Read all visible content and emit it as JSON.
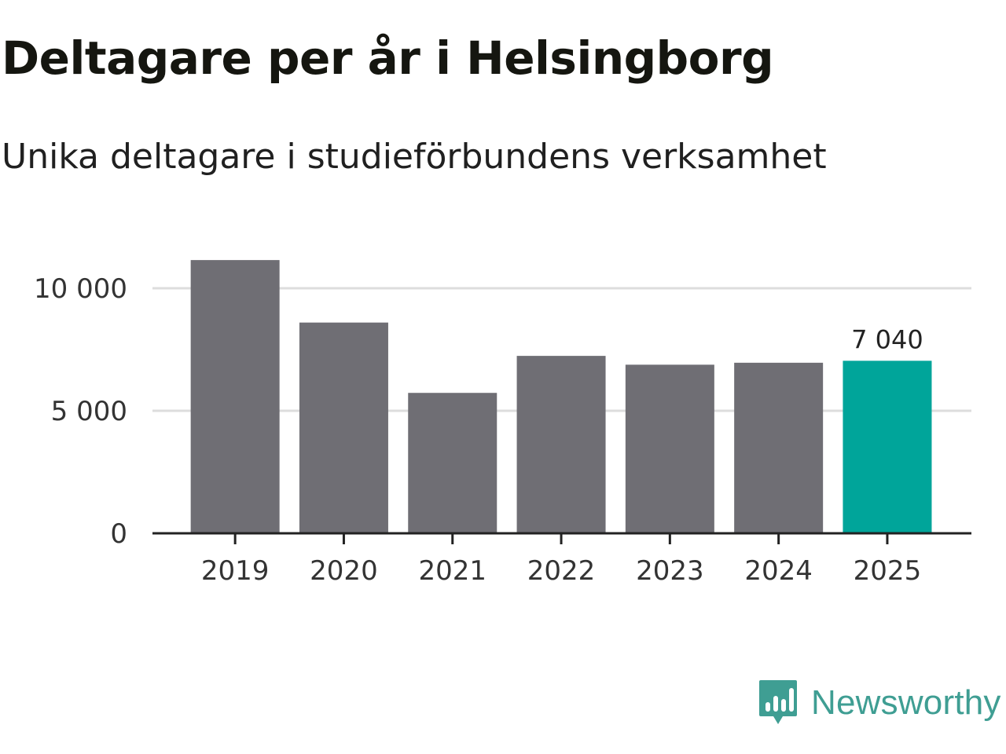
{
  "title": "Deltagare per år i Helsingborg",
  "subtitle": "Unika deltagare i studieförbundens verksamhet",
  "brand": {
    "name": "Newsworthy",
    "icon": "newsworthy-logo-icon",
    "color": "#3f9e93"
  },
  "colors": {
    "bar": "#6f6e74",
    "highlight": "#00a59a",
    "grid": "#dddddd",
    "axis": "#222222"
  },
  "chart_data": {
    "type": "bar",
    "title": "Deltagare per år i Helsingborg",
    "subtitle": "Unika deltagare i studieförbundens verksamhet",
    "xlabel": "",
    "ylabel": "",
    "categories": [
      "2019",
      "2020",
      "2021",
      "2022",
      "2023",
      "2024",
      "2025"
    ],
    "values": [
      11150,
      8600,
      5730,
      7240,
      6880,
      6960,
      7040
    ],
    "highlight_index": 6,
    "ylim": [
      0,
      11500
    ],
    "yticks": [
      0,
      5000,
      10000
    ],
    "ytick_labels": [
      "0",
      "5 000",
      "10 000"
    ],
    "grid": true,
    "data_labels": [
      {
        "index": 6,
        "text": "7 040"
      }
    ]
  }
}
